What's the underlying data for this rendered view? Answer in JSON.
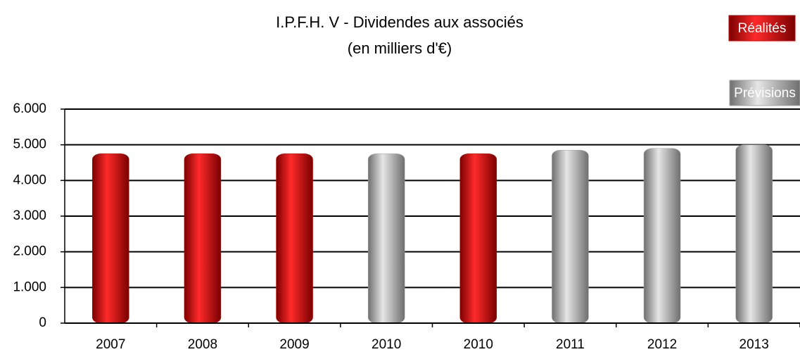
{
  "chart_data": {
    "type": "bar",
    "title": "I.P.F.H. V - Dividendes aux associés",
    "subtitle": "(en milliers d'€)",
    "categories": [
      "2007",
      "2008",
      "2009",
      "2010",
      "2010",
      "2011",
      "2012",
      "2013"
    ],
    "series": [
      {
        "name": "Réalités",
        "color": "#cc0000",
        "values": [
          4750,
          4750,
          4750,
          null,
          4750,
          null,
          null,
          null
        ]
      },
      {
        "name": "Prévisions",
        "color": "#a6a6a6",
        "values": [
          null,
          null,
          null,
          4750,
          null,
          4850,
          4900,
          5000
        ]
      }
    ],
    "ylim": [
      0,
      6000
    ],
    "yticks": [
      0,
      {
        "value": 1000,
        "label": "1.000"
      },
      {
        "value": 2000,
        "label": "2.000"
      },
      {
        "value": 3000,
        "label": "3.000"
      },
      {
        "value": 4000,
        "label": "4.000"
      },
      {
        "value": 5000,
        "label": "5.000"
      },
      {
        "value": 6000,
        "label": "6.000"
      }
    ],
    "grid": true,
    "legend": "top-right"
  }
}
